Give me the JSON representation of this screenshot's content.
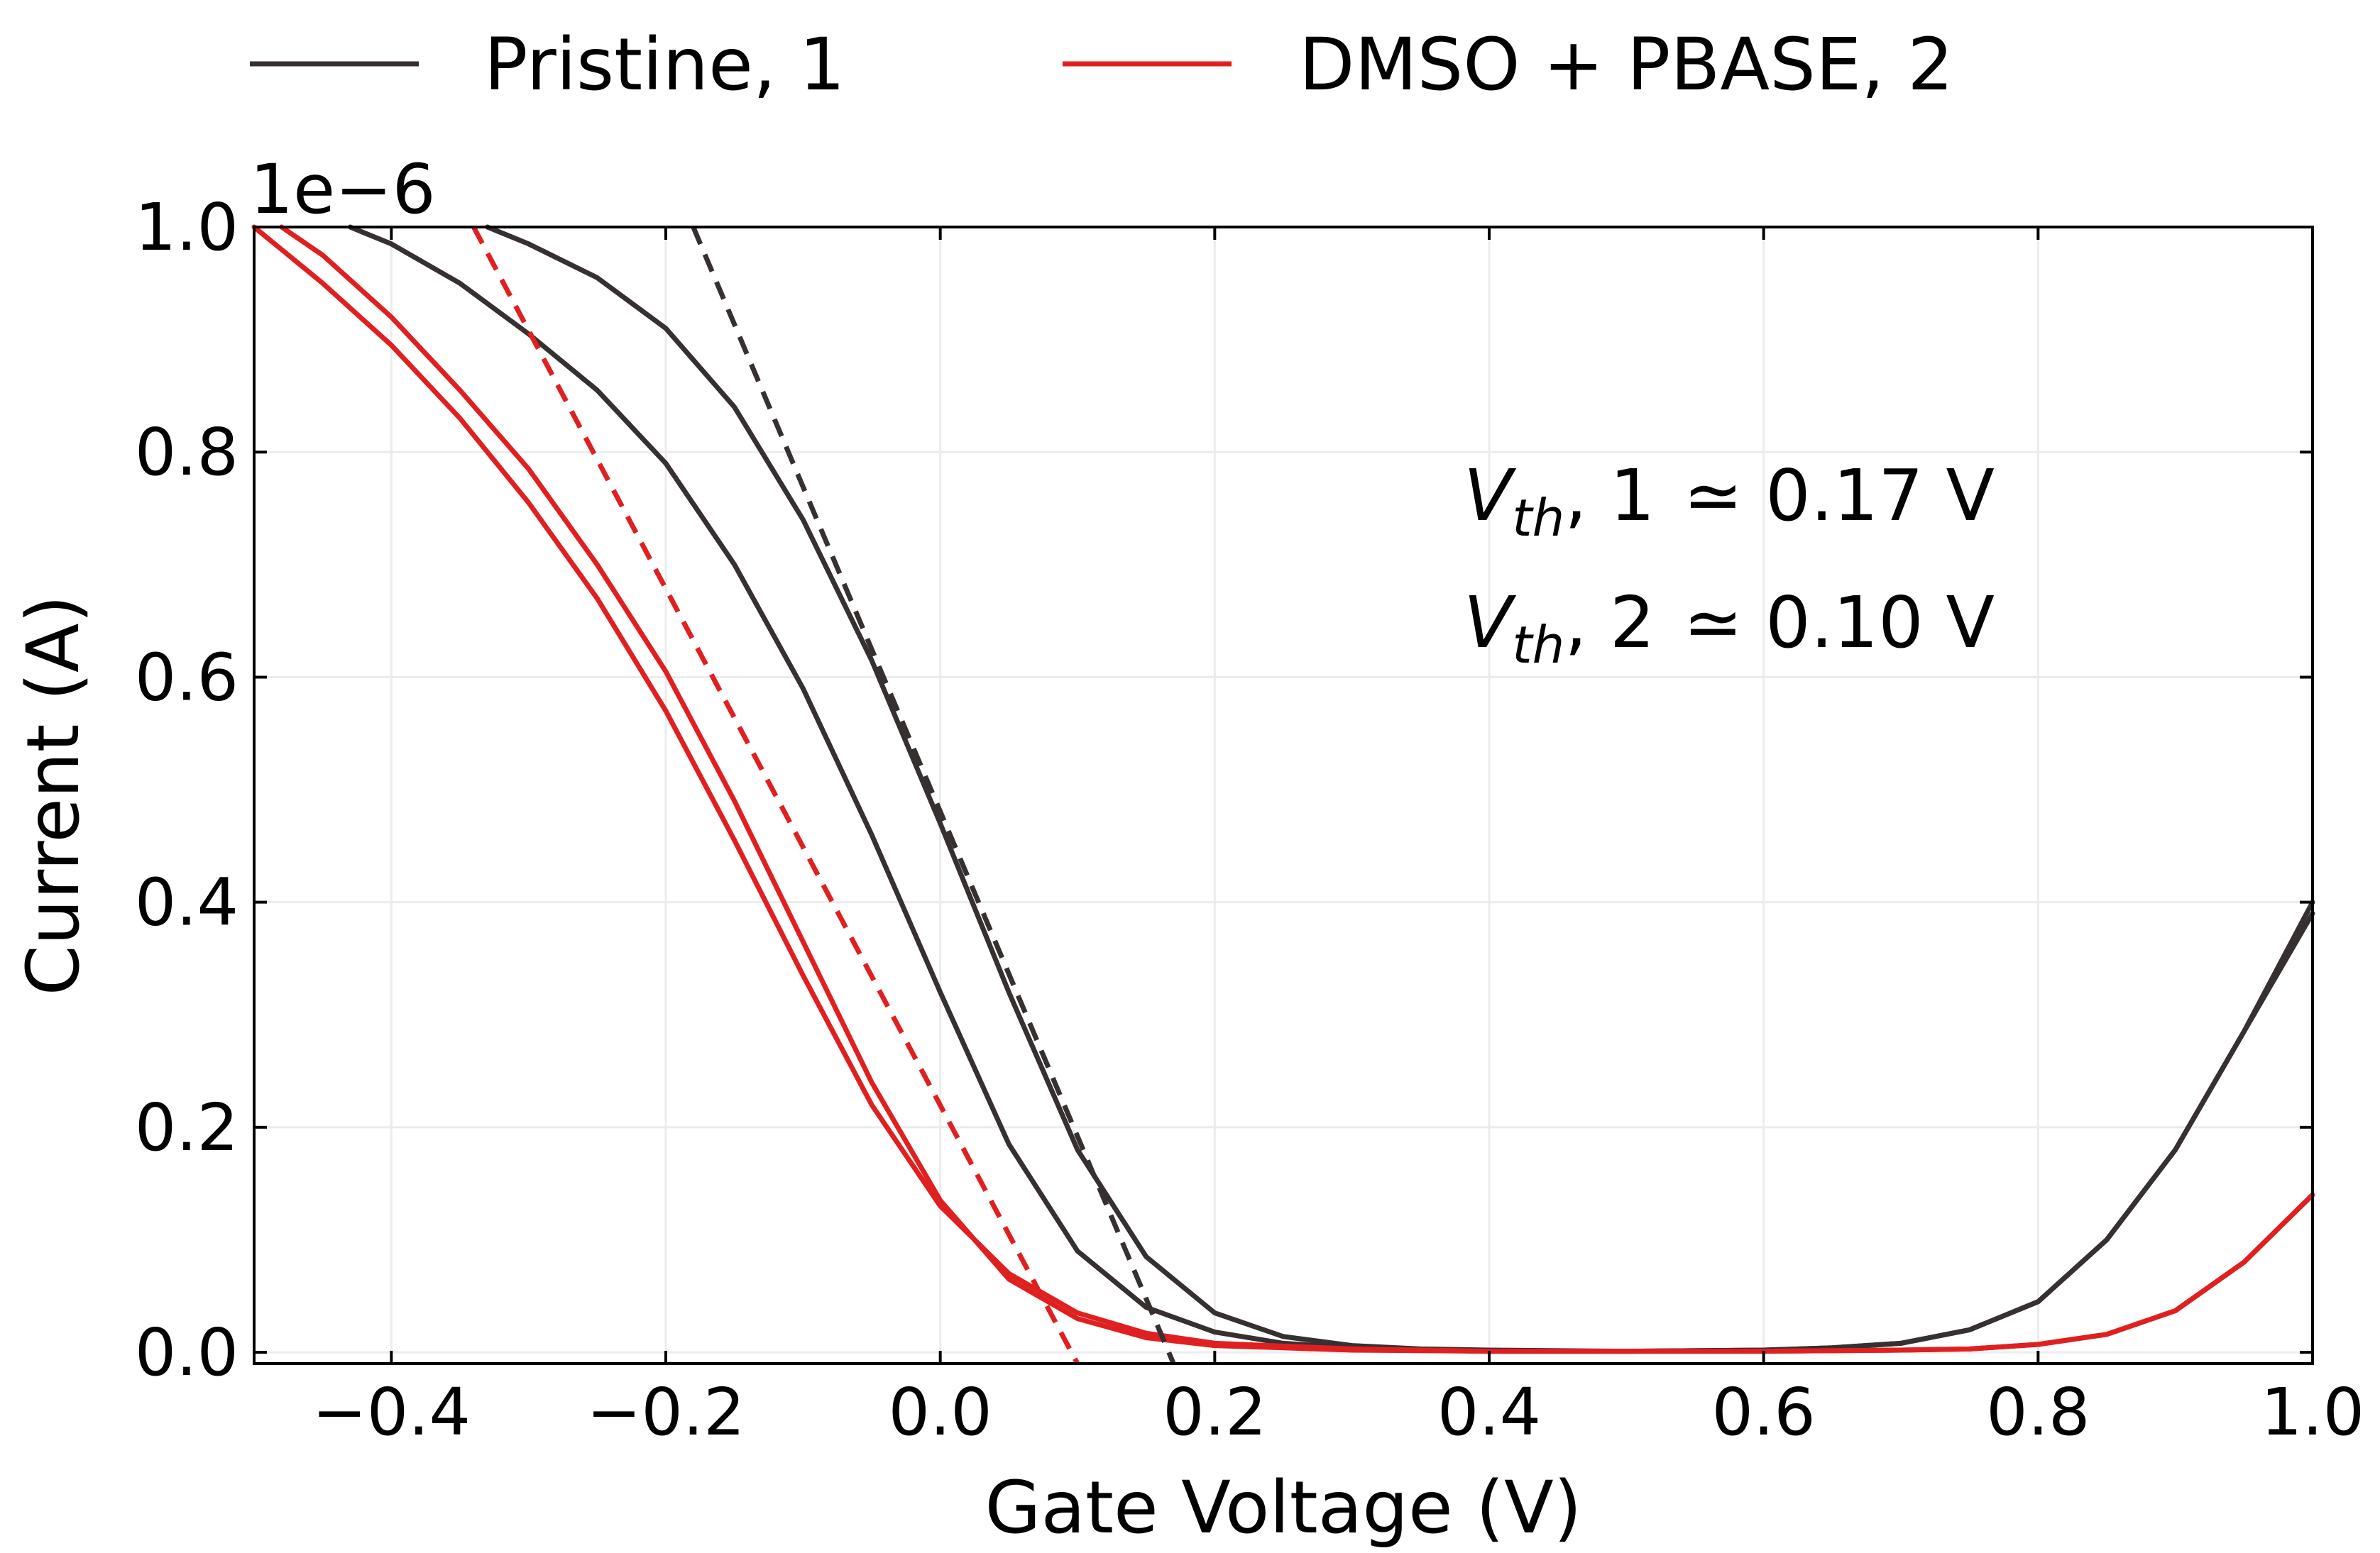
{
  "chart_data": {
    "type": "line",
    "title": "",
    "xlabel": "Gate Voltage (V)",
    "ylabel": "Current (A)",
    "y_offset_label": "1e−6",
    "xlim": [
      -0.5,
      1.0
    ],
    "ylim": [
      -0.01,
      1.0
    ],
    "x_ticks": [
      -0.4,
      -0.2,
      0.0,
      0.2,
      0.4,
      0.6,
      0.8,
      1.0
    ],
    "x_tick_labels": [
      "−0.4",
      "−0.2",
      "0.0",
      "0.2",
      "0.4",
      "0.6",
      "0.8",
      "1.0"
    ],
    "y_ticks": [
      0.0,
      0.2,
      0.4,
      0.6,
      0.8,
      1.0
    ],
    "y_tick_labels": [
      "0.0",
      "0.2",
      "0.4",
      "0.6",
      "0.8",
      "1.0"
    ],
    "grid": true,
    "legend_position": "top-center, above plot",
    "series": [
      {
        "name": "Pristine, 1",
        "color": "#363030",
        "style": "solid",
        "sweep": "outer",
        "x": [
          -0.43,
          -0.4,
          -0.35,
          -0.3,
          -0.25,
          -0.2,
          -0.15,
          -0.1,
          -0.05,
          0.0,
          0.05,
          0.1,
          0.15,
          0.2,
          0.25,
          0.3,
          0.35,
          0.4,
          0.5,
          0.6,
          0.65,
          0.7,
          0.75,
          0.8,
          0.85,
          0.9,
          0.95,
          1.0
        ],
        "y": [
          1.0,
          0.985,
          0.95,
          0.905,
          0.855,
          0.79,
          0.7,
          0.59,
          0.46,
          0.32,
          0.185,
          0.09,
          0.04,
          0.018,
          0.008,
          0.004,
          0.002,
          0.001,
          0.001,
          0.002,
          0.004,
          0.008,
          0.02,
          0.045,
          0.1,
          0.18,
          0.285,
          0.4
        ]
      },
      {
        "name": "Pristine, 1",
        "color": "#363030",
        "style": "solid",
        "sweep": "inner",
        "x": [
          -0.33,
          -0.3,
          -0.25,
          -0.2,
          -0.15,
          -0.1,
          -0.05,
          0.0,
          0.05,
          0.1,
          0.15,
          0.2,
          0.25,
          0.3,
          0.35,
          0.4,
          0.5,
          0.6,
          0.65,
          0.7,
          0.75,
          0.8,
          0.85,
          0.9,
          0.95,
          1.0
        ],
        "y": [
          1.0,
          0.985,
          0.955,
          0.91,
          0.84,
          0.74,
          0.615,
          0.47,
          0.32,
          0.18,
          0.085,
          0.035,
          0.014,
          0.006,
          0.003,
          0.002,
          0.001,
          0.002,
          0.004,
          0.008,
          0.02,
          0.045,
          0.1,
          0.18,
          0.285,
          0.39
        ]
      },
      {
        "name": "DMSO + PBASE, 2",
        "color": "#e02020",
        "style": "solid",
        "sweep": "outer",
        "x": [
          -0.5,
          -0.45,
          -0.4,
          -0.35,
          -0.3,
          -0.25,
          -0.2,
          -0.15,
          -0.1,
          -0.05,
          0.0,
          0.05,
          0.1,
          0.15,
          0.2,
          0.3,
          0.4,
          0.5,
          0.6,
          0.7,
          0.75,
          0.8,
          0.85,
          0.9,
          0.95,
          1.0
        ],
        "y": [
          1.0,
          0.95,
          0.895,
          0.83,
          0.755,
          0.67,
          0.57,
          0.455,
          0.335,
          0.22,
          0.13,
          0.07,
          0.035,
          0.017,
          0.008,
          0.003,
          0.001,
          0.001,
          0.001,
          0.002,
          0.003,
          0.007,
          0.016,
          0.037,
          0.08,
          0.14
        ]
      },
      {
        "name": "DMSO + PBASE, 2",
        "color": "#e02020",
        "style": "solid",
        "sweep": "inner",
        "x": [
          -0.48,
          -0.45,
          -0.4,
          -0.35,
          -0.3,
          -0.25,
          -0.2,
          -0.15,
          -0.1,
          -0.05,
          0.0,
          0.05,
          0.1,
          0.15,
          0.2,
          0.3,
          0.4,
          0.5,
          0.6,
          0.7,
          0.75,
          0.8,
          0.85,
          0.9,
          0.95,
          1.0
        ],
        "y": [
          1.0,
          0.975,
          0.92,
          0.855,
          0.785,
          0.7,
          0.605,
          0.49,
          0.365,
          0.24,
          0.135,
          0.065,
          0.03,
          0.013,
          0.006,
          0.002,
          0.001,
          0.001,
          0.001,
          0.002,
          0.003,
          0.007,
          0.016,
          0.037,
          0.08,
          0.14
        ]
      },
      {
        "name": "Pristine, 1",
        "color": "#363030",
        "style": "dashed",
        "role": "linear fit",
        "x": [
          -0.18,
          0.17
        ],
        "y": [
          1.0,
          -0.01
        ]
      },
      {
        "name": "DMSO + PBASE, 2",
        "color": "#e02020",
        "style": "dashed",
        "role": "linear fit",
        "x": [
          -0.34,
          0.1
        ],
        "y": [
          1.0,
          -0.01
        ]
      }
    ],
    "legend": [
      {
        "label": "Pristine, 1",
        "color": "#363030"
      },
      {
        "label": "DMSO + PBASE, 2",
        "color": "#e02020"
      }
    ],
    "annotations": [
      {
        "label_main": "V",
        "label_sub": "th",
        "label_rest": ", 1",
        "value": "≃ 0.17 V"
      },
      {
        "label_main": "V",
        "label_sub": "th",
        "label_rest": ", 2",
        "value": "≃ 0.10 V"
      }
    ]
  }
}
